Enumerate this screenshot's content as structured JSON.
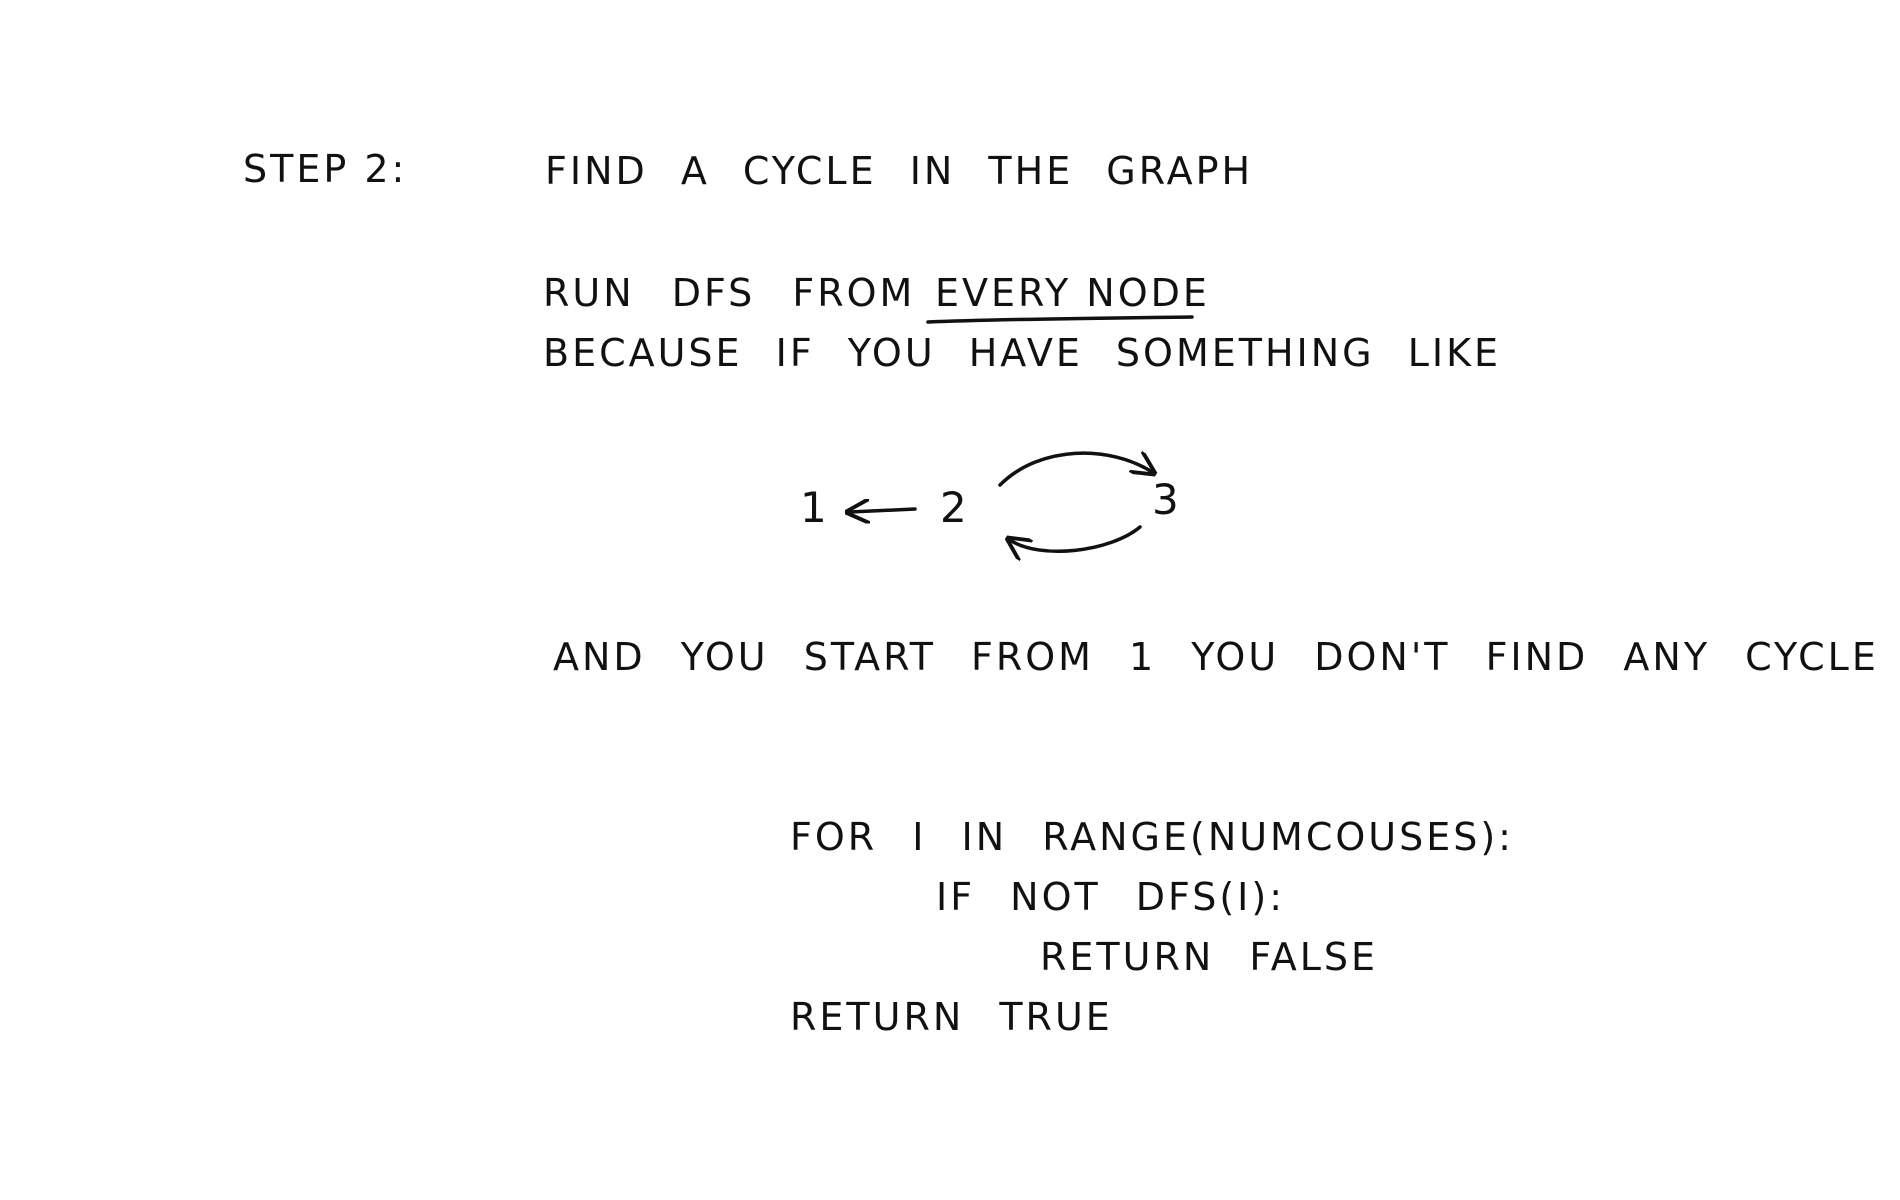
{
  "header": {
    "step_label": "STEP 2:",
    "title": "FIND A CYCLE IN THE GRAPH"
  },
  "explanation": {
    "line1_prefix": "RUN DFS FROM",
    "line1_emphasis": "EVERY NODE",
    "line2": "BECAUSE IF YOU HAVE SOMETHING LIKE"
  },
  "graph": {
    "nodes": [
      "1",
      "2",
      "3"
    ],
    "edges": [
      {
        "from": "2",
        "to": "1"
      },
      {
        "from": "2",
        "to": "3"
      },
      {
        "from": "3",
        "to": "2"
      }
    ]
  },
  "conclusion": {
    "text": "AND YOU START FROM 1 YOU DON'T FIND ANY CYCLE"
  },
  "code": {
    "line1": "FOR I IN RANGE(NUMCOUSES):",
    "line2": "IF NOT DFS(I):",
    "line3": "RETURN FALSE",
    "line4": "RETURN TRUE"
  },
  "colors": {
    "ink": "#111111",
    "background": "#ffffff"
  }
}
